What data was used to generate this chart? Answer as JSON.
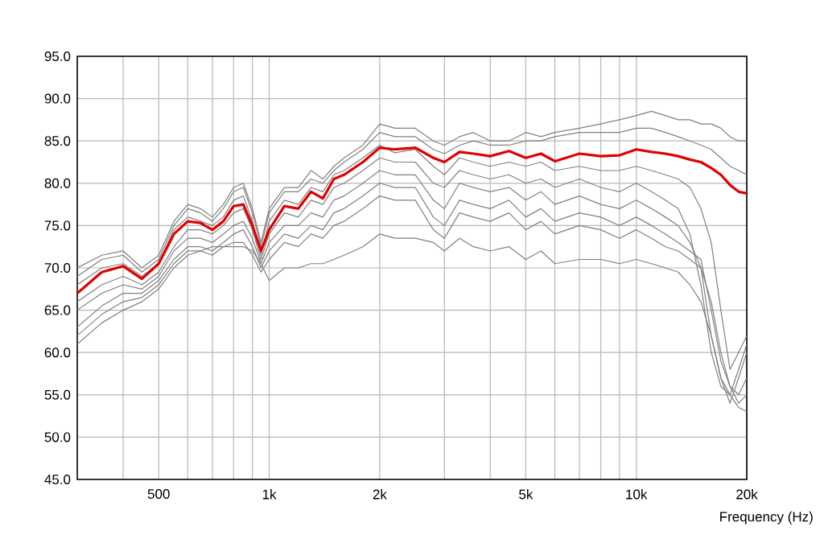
{
  "chart_data": {
    "type": "line",
    "xlabel": "Frequency (Hz)",
    "log": "x",
    "grid": true,
    "marker": "none",
    "line_style": "solid",
    "xlim": [
      300,
      20000
    ],
    "ylim": [
      45,
      95
    ],
    "xticks": [
      {
        "value": 400,
        "label": null
      },
      {
        "value": 500,
        "label": "500"
      },
      {
        "value": 600,
        "label": null
      },
      {
        "value": 700,
        "label": null
      },
      {
        "value": 800,
        "label": null
      },
      {
        "value": 900,
        "label": null
      },
      {
        "value": 1000,
        "label": "1k"
      },
      {
        "value": 2000,
        "label": "2k"
      },
      {
        "value": 3000,
        "label": null
      },
      {
        "value": 4000,
        "label": null
      },
      {
        "value": 5000,
        "label": "5k"
      },
      {
        "value": 6000,
        "label": null
      },
      {
        "value": 7000,
        "label": null
      },
      {
        "value": 8000,
        "label": null
      },
      {
        "value": 9000,
        "label": null
      },
      {
        "value": 10000,
        "label": "10k"
      },
      {
        "value": 20000,
        "label": "20k"
      }
    ],
    "yticks": [
      {
        "value": 45,
        "label": "45.0"
      },
      {
        "value": 50,
        "label": "50.0"
      },
      {
        "value": 55,
        "label": "55.0"
      },
      {
        "value": 60,
        "label": "60.0"
      },
      {
        "value": 65,
        "label": "65.0"
      },
      {
        "value": 70,
        "label": "70.0"
      },
      {
        "value": 75,
        "label": "75.0"
      },
      {
        "value": 80,
        "label": "80.0"
      },
      {
        "value": 85,
        "label": "85.0"
      },
      {
        "value": 90,
        "label": "90.0"
      },
      {
        "value": 95,
        "label": "95.0"
      }
    ],
    "x": [
      300,
      350,
      400,
      450,
      500,
      550,
      600,
      650,
      700,
      750,
      800,
      850,
      900,
      950,
      1000,
      1100,
      1200,
      1300,
      1400,
      1500,
      1600,
      1800,
      2000,
      2200,
      2500,
      2800,
      3000,
      3300,
      3600,
      4000,
      4500,
      5000,
      5500,
      6000,
      7000,
      8000,
      9000,
      10000,
      11000,
      12000,
      13000,
      14000,
      15000,
      16000,
      17000,
      18000,
      19000,
      20000
    ],
    "series": [
      {
        "color": "#808080",
        "values": [
          70,
          71.5,
          72,
          70,
          71.5,
          75.5,
          77.5,
          77,
          76,
          77.5,
          79.5,
          80,
          77,
          73,
          77,
          79.5,
          79.5,
          81.5,
          80.5,
          82,
          83,
          84.5,
          87,
          86.5,
          86.5,
          85,
          84.5,
          85.5,
          86,
          85,
          85,
          86,
          85.5,
          86,
          86.5,
          87,
          87.5,
          88,
          88.5,
          88,
          87.5,
          87.5,
          87,
          87,
          86.5,
          85.5,
          85,
          85
        ]
      },
      {
        "color": "#808080",
        "values": [
          69,
          71,
          71.5,
          69.5,
          71,
          75,
          77,
          76.5,
          75.5,
          77,
          79,
          79.5,
          76.5,
          72.5,
          76.5,
          79,
          79,
          80.5,
          80,
          81.5,
          82.5,
          84,
          86,
          85.5,
          85.5,
          84,
          83.5,
          84.5,
          85,
          84.5,
          84.5,
          85,
          85,
          85.5,
          86,
          86,
          86,
          86.5,
          86.5,
          86,
          85.5,
          85,
          84.5,
          84,
          83,
          82,
          81.5,
          81
        ]
      },
      {
        "color": "#808080",
        "values": [
          68,
          70,
          70.5,
          69,
          70.5,
          74.5,
          76,
          75.5,
          75,
          76,
          78,
          78.5,
          75.5,
          71.5,
          75.5,
          78,
          77.5,
          79.5,
          79,
          81,
          81.5,
          83,
          84.5,
          83.6,
          84,
          82,
          81,
          83,
          82.5,
          82,
          82.5,
          82,
          82.5,
          81.5,
          82,
          81.5,
          81.5,
          82,
          81.5,
          81,
          80.5,
          79.5,
          77,
          73,
          65,
          58,
          60,
          62
        ]
      },
      {
        "color": "#808080",
        "values": [
          66,
          68,
          69,
          68,
          69.5,
          72.5,
          74.5,
          74.5,
          74,
          75,
          76.5,
          77,
          74.5,
          71,
          74,
          76.5,
          76,
          78,
          77.5,
          79.5,
          80,
          81.5,
          83,
          82.5,
          82.5,
          80,
          79.5,
          81.5,
          81,
          80.5,
          81,
          80,
          80.5,
          79.5,
          80.5,
          79.5,
          79,
          80,
          79,
          78,
          77,
          74,
          68,
          60,
          56,
          55,
          58,
          61
        ]
      },
      {
        "color": "#808080",
        "values": [
          65,
          67,
          68,
          67.5,
          69,
          72,
          73.5,
          73.5,
          73,
          74,
          75,
          75.5,
          73.5,
          70.5,
          73,
          75,
          75,
          76.5,
          76,
          78,
          78.5,
          80,
          81.5,
          81,
          81,
          78,
          77,
          80,
          79.5,
          79,
          79.5,
          78,
          79,
          77.5,
          78.5,
          77.5,
          77,
          78,
          77,
          76,
          75,
          73,
          70,
          62,
          57,
          54,
          57,
          60
        ]
      },
      {
        "color": "#808080",
        "values": [
          63,
          65.5,
          67,
          67,
          68.5,
          71,
          72.5,
          72.5,
          72,
          73,
          74,
          74.5,
          72.5,
          70,
          72,
          74,
          73.5,
          75,
          74.5,
          76.5,
          77,
          78.5,
          80,
          79.5,
          79.5,
          76,
          75,
          78,
          77.5,
          77,
          78,
          76,
          77,
          75.5,
          76.5,
          76,
          75,
          76,
          75,
          74,
          73,
          72,
          71,
          65,
          59,
          56,
          55,
          57
        ]
      },
      {
        "color": "#808080",
        "values": [
          62,
          64.5,
          66,
          66.5,
          68,
          70.5,
          72,
          72,
          71.5,
          72.5,
          73,
          73,
          71.5,
          69.5,
          71,
          73,
          72.5,
          74,
          73.5,
          75,
          75.5,
          77,
          78.5,
          78,
          78,
          74.5,
          73.5,
          76.5,
          76,
          75.5,
          76.5,
          74.5,
          75.5,
          74,
          75,
          74.5,
          73.5,
          74.5,
          73.5,
          72.5,
          72,
          71,
          70,
          66,
          60,
          56,
          54,
          55
        ]
      },
      {
        "color": "#808080",
        "values": [
          61,
          63.5,
          65,
          66,
          67.5,
          70,
          71.5,
          72,
          72.5,
          72.5,
          72.5,
          72.5,
          72,
          70.5,
          68.5,
          70,
          70,
          70.5,
          70.5,
          71,
          71.5,
          72.5,
          74,
          73.5,
          73.5,
          73,
          72,
          73.5,
          72.5,
          72,
          72.5,
          71,
          72,
          70.5,
          71,
          71,
          70.5,
          71,
          70.5,
          70,
          69.5,
          68,
          66,
          62,
          57,
          55,
          53.5,
          53
        ]
      },
      {
        "color": "#e00000",
        "values": [
          67,
          69.5,
          70.2,
          68.7,
          70.5,
          74,
          75.5,
          75.3,
          74.5,
          75.5,
          77.3,
          77.5,
          75,
          72,
          74.5,
          77.3,
          77,
          79,
          78.2,
          80.5,
          81,
          82.5,
          84.2,
          84,
          84.2,
          83,
          82.5,
          83.7,
          83.5,
          83.2,
          83.8,
          83,
          83.5,
          82.6,
          83.5,
          83.2,
          83.3,
          84,
          83.7,
          83.5,
          83.2,
          82.8,
          82.5,
          81.8,
          81,
          79.8,
          79,
          78.8
        ]
      }
    ]
  }
}
